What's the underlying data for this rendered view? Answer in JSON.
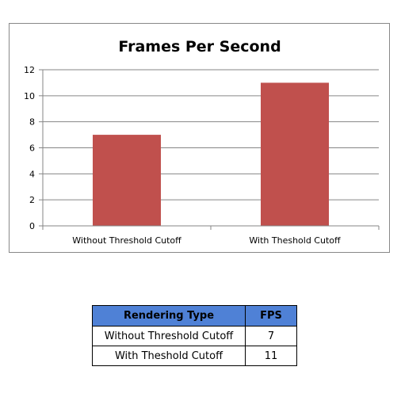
{
  "chart_data": {
    "type": "bar",
    "title": "Frames Per Second",
    "categories": [
      "Without Threshold Cutoff",
      "With Theshold Cutoff"
    ],
    "values": [
      7,
      11
    ],
    "ylim": [
      0,
      12
    ],
    "yticks": [
      0,
      2,
      4,
      6,
      8,
      10,
      12
    ],
    "grid": true,
    "legend": "none",
    "bar_color": "#c0504d"
  },
  "table": {
    "headers": [
      "Rendering Type",
      "FPS"
    ],
    "rows": [
      [
        "Without Threshold Cutoff",
        "7"
      ],
      [
        "With Theshold Cutoff",
        "11"
      ]
    ]
  }
}
